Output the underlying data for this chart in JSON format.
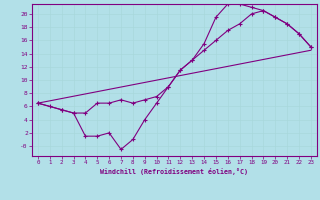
{
  "xlabel": "Windchill (Refroidissement éolien,°C)",
  "bg_color": "#b2e0e8",
  "grid_color": "#c8e8ec",
  "line_color": "#800080",
  "xlim": [
    -0.5,
    23.5
  ],
  "ylim": [
    -1.5,
    21.5
  ],
  "xticks": [
    0,
    1,
    2,
    3,
    4,
    5,
    6,
    7,
    8,
    9,
    10,
    11,
    12,
    13,
    14,
    15,
    16,
    17,
    18,
    19,
    20,
    21,
    22,
    23
  ],
  "yticks": [
    0,
    2,
    4,
    6,
    8,
    10,
    12,
    14,
    16,
    18,
    20
  ],
  "ytick_labels": [
    "-0",
    "2",
    "4",
    "6",
    "8",
    "10",
    "12",
    "14",
    "16",
    "18",
    "20"
  ],
  "line1_x": [
    0,
    1,
    2,
    3,
    4,
    5,
    6,
    7,
    8,
    9,
    10,
    11,
    12,
    13,
    14,
    15,
    16,
    17,
    18,
    19,
    20,
    21,
    22,
    23
  ],
  "line1_y": [
    6.5,
    6.0,
    5.5,
    5.0,
    5.0,
    6.5,
    6.5,
    7.0,
    6.5,
    7.0,
    7.5,
    9.0,
    11.5,
    13.0,
    14.5,
    16.0,
    17.5,
    18.5,
    20.0,
    20.5,
    19.5,
    18.5,
    17.0,
    15.0
  ],
  "line2_x": [
    0,
    2,
    3,
    4,
    5,
    6,
    7,
    8,
    9,
    10,
    11,
    12,
    13,
    14,
    15,
    16,
    17,
    18,
    19,
    20,
    21,
    22,
    23
  ],
  "line2_y": [
    6.5,
    5.5,
    5.0,
    1.5,
    1.5,
    2.0,
    -0.5,
    1.0,
    4.0,
    6.5,
    9.0,
    11.5,
    13.0,
    15.5,
    19.5,
    21.5,
    21.5,
    21.0,
    20.5,
    19.5,
    18.5,
    17.0,
    15.0
  ],
  "line3_x": [
    0,
    23
  ],
  "line3_y": [
    6.5,
    14.5
  ]
}
